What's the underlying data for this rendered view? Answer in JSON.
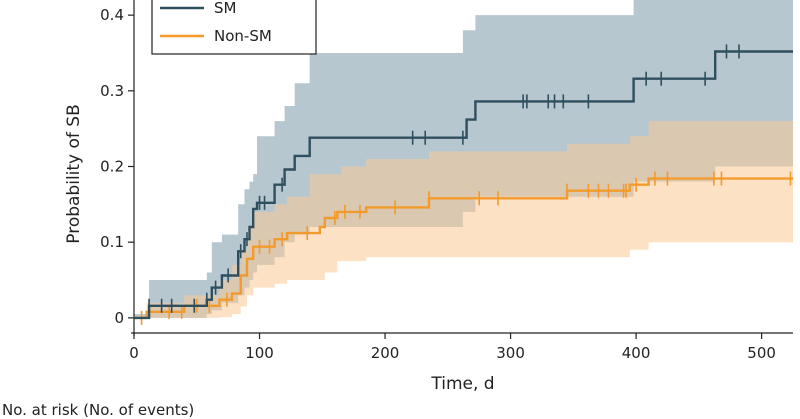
{
  "chart_data": {
    "type": "line",
    "step": true,
    "title": "",
    "xlabel": "Time, d",
    "ylabel": "Probability of SB",
    "xlim": [
      0,
      525
    ],
    "ylim": [
      -0.02,
      0.42
    ],
    "x_ticks": [
      0,
      100,
      200,
      300,
      400,
      500
    ],
    "y_ticks": [
      0,
      0.1,
      0.2,
      0.3,
      0.4
    ],
    "y_tick_labels": [
      "0",
      "0.1",
      "0.2",
      "0.3",
      "0.4"
    ],
    "legend_position": "top-left",
    "grid": false,
    "series": [
      {
        "name": "SM",
        "color": "#2f4f5f",
        "band_color": "#9eb4c0",
        "steps": [
          [
            0,
            0
          ],
          [
            12,
            0.016
          ],
          [
            58,
            0.024
          ],
          [
            62,
            0.04
          ],
          [
            70,
            0.056
          ],
          [
            83,
            0.088
          ],
          [
            88,
            0.104
          ],
          [
            92,
            0.12
          ],
          [
            95,
            0.144
          ],
          [
            98,
            0.152
          ],
          [
            112,
            0.176
          ],
          [
            120,
            0.196
          ],
          [
            128,
            0.214
          ],
          [
            140,
            0.238
          ],
          [
            265,
            0.262
          ],
          [
            272,
            0.286
          ],
          [
            398,
            0.316
          ],
          [
            463,
            0.352
          ],
          [
            525,
            0.352
          ]
        ],
        "ci_upper": [
          [
            0,
            0.005
          ],
          [
            12,
            0.05
          ],
          [
            58,
            0.06
          ],
          [
            62,
            0.1
          ],
          [
            70,
            0.11
          ],
          [
            83,
            0.15
          ],
          [
            88,
            0.17
          ],
          [
            92,
            0.18
          ],
          [
            95,
            0.19
          ],
          [
            98,
            0.24
          ],
          [
            112,
            0.26
          ],
          [
            120,
            0.28
          ],
          [
            128,
            0.31
          ],
          [
            140,
            0.35
          ],
          [
            262,
            0.38
          ],
          [
            272,
            0.4
          ],
          [
            398,
            0.42
          ],
          [
            463,
            0.42
          ],
          [
            525,
            0.42
          ]
        ],
        "ci_lower": [
          [
            0,
            0
          ],
          [
            12,
            0
          ],
          [
            58,
            0.005
          ],
          [
            62,
            0.01
          ],
          [
            70,
            0.02
          ],
          [
            83,
            0.03
          ],
          [
            88,
            0.04
          ],
          [
            92,
            0.05
          ],
          [
            95,
            0.06
          ],
          [
            98,
            0.07
          ],
          [
            112,
            0.08
          ],
          [
            120,
            0.1
          ],
          [
            128,
            0.11
          ],
          [
            140,
            0.12
          ],
          [
            262,
            0.14
          ],
          [
            272,
            0.16
          ],
          [
            398,
            0.18
          ],
          [
            463,
            0.2
          ],
          [
            525,
            0.2
          ]
        ],
        "censored": [
          12,
          22,
          30,
          48,
          58,
          65,
          75,
          85,
          90,
          100,
          104,
          118,
          222,
          232,
          262,
          310,
          313,
          330,
          335,
          342,
          362,
          408,
          420,
          455,
          472,
          482
        ]
      },
      {
        "name": "Non-SM",
        "color": "#f39a2c",
        "band_color": "#f9c995",
        "steps": [
          [
            0,
            0
          ],
          [
            10,
            0.008
          ],
          [
            40,
            0.016
          ],
          [
            68,
            0.024
          ],
          [
            78,
            0.032
          ],
          [
            85,
            0.056
          ],
          [
            90,
            0.078
          ],
          [
            95,
            0.094
          ],
          [
            112,
            0.104
          ],
          [
            122,
            0.112
          ],
          [
            148,
            0.12
          ],
          [
            152,
            0.132
          ],
          [
            162,
            0.14
          ],
          [
            185,
            0.146
          ],
          [
            235,
            0.158
          ],
          [
            345,
            0.168
          ],
          [
            395,
            0.176
          ],
          [
            410,
            0.184
          ],
          [
            525,
            0.184
          ]
        ],
        "ci_upper": [
          [
            0,
            0.003
          ],
          [
            10,
            0.02
          ],
          [
            40,
            0.03
          ],
          [
            68,
            0.05
          ],
          [
            78,
            0.07
          ],
          [
            85,
            0.09
          ],
          [
            90,
            0.12
          ],
          [
            95,
            0.14
          ],
          [
            112,
            0.15
          ],
          [
            122,
            0.16
          ],
          [
            140,
            0.19
          ],
          [
            165,
            0.2
          ],
          [
            185,
            0.21
          ],
          [
            235,
            0.22
          ],
          [
            345,
            0.23
          ],
          [
            395,
            0.24
          ],
          [
            410,
            0.26
          ],
          [
            525,
            0.26
          ]
        ],
        "ci_lower": [
          [
            0,
            0
          ],
          [
            10,
            0
          ],
          [
            40,
            0
          ],
          [
            68,
            0.001
          ],
          [
            78,
            0.005
          ],
          [
            85,
            0.015
          ],
          [
            90,
            0.03
          ],
          [
            95,
            0.04
          ],
          [
            112,
            0.045
          ],
          [
            122,
            0.05
          ],
          [
            148,
            0.05
          ],
          [
            152,
            0.06
          ],
          [
            162,
            0.075
          ],
          [
            185,
            0.08
          ],
          [
            235,
            0.08
          ],
          [
            345,
            0.08
          ],
          [
            395,
            0.09
          ],
          [
            410,
            0.1
          ],
          [
            525,
            0.1
          ]
        ],
        "censored": [
          6,
          12,
          28,
          38,
          50,
          60,
          74,
          100,
          108,
          118,
          138,
          160,
          168,
          180,
          208,
          235,
          275,
          290,
          345,
          362,
          370,
          378,
          390,
          392,
          400,
          415,
          425,
          462,
          468,
          523
        ]
      }
    ]
  },
  "risk_table": {
    "title": "No. at risk (No. of events)"
  }
}
